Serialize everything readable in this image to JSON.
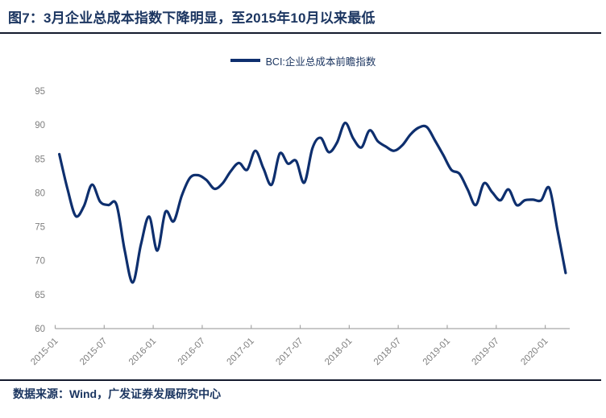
{
  "header": {
    "title": "图7：3月企业总成本指数下降明显，至2015年10月以来最低"
  },
  "legend": {
    "label": "BCI:企业总成本前瞻指数"
  },
  "footer": {
    "source": "数据来源：Wind，广发证券发展研究中心"
  },
  "colors": {
    "line": "#0e2f6e",
    "title_text": "#1c3661",
    "axis_text": "#7f7f7f",
    "axis_line": "#a6a6a6",
    "rule": "#141b2e"
  },
  "chart_data": {
    "type": "line",
    "title": "图7：3月企业总成本指数下降明显，至2015年10月以来最低",
    "legend_entries": [
      "BCI:企业总成本前瞻指数"
    ],
    "legend_position": "top",
    "grid": false,
    "smooth": true,
    "xlabel": "",
    "ylabel": "",
    "ylim": [
      60,
      95
    ],
    "yticks": [
      60,
      65,
      70,
      75,
      80,
      85,
      90,
      95
    ],
    "xtick_labels": [
      "2015-01",
      "2015-07",
      "2016-01",
      "2016-07",
      "2017-01",
      "2017-07",
      "2018-01",
      "2018-07",
      "2019-01",
      "2019-07",
      "2020-01"
    ],
    "categories": [
      "2015-01",
      "2015-02",
      "2015-03",
      "2015-04",
      "2015-05",
      "2015-06",
      "2015-07",
      "2015-08",
      "2015-09",
      "2015-10",
      "2015-11",
      "2015-12",
      "2016-01",
      "2016-02",
      "2016-03",
      "2016-04",
      "2016-05",
      "2016-06",
      "2016-07",
      "2016-08",
      "2016-09",
      "2016-10",
      "2016-11",
      "2016-12",
      "2017-01",
      "2017-02",
      "2017-03",
      "2017-04",
      "2017-05",
      "2017-06",
      "2017-07",
      "2017-08",
      "2017-09",
      "2017-10",
      "2017-11",
      "2017-12",
      "2018-01",
      "2018-02",
      "2018-03",
      "2018-04",
      "2018-05",
      "2018-06",
      "2018-07",
      "2018-08",
      "2018-09",
      "2018-10",
      "2018-11",
      "2018-12",
      "2019-01",
      "2019-02",
      "2019-03",
      "2019-04",
      "2019-05",
      "2019-06",
      "2019-07",
      "2019-08",
      "2019-09",
      "2019-10",
      "2019-11",
      "2019-12",
      "2020-01",
      "2020-02",
      "2020-03"
    ],
    "series": [
      {
        "name": "BCI:企业总成本前瞻指数",
        "values": [
          85.7,
          80.6,
          76.6,
          78.0,
          81.2,
          78.7,
          78.2,
          78.3,
          71.6,
          66.8,
          72.4,
          76.5,
          71.5,
          77.2,
          75.8,
          79.6,
          82.2,
          82.6,
          81.9,
          80.6,
          81.4,
          83.2,
          84.4,
          83.4,
          86.2,
          83.6,
          81.2,
          85.8,
          84.3,
          84.7,
          81.5,
          86.6,
          88.1,
          86.0,
          87.4,
          90.3,
          88.0,
          86.7,
          89.2,
          87.6,
          86.8,
          86.2,
          87.0,
          88.6,
          89.6,
          89.7,
          87.7,
          85.6,
          83.4,
          82.8,
          80.5,
          78.2,
          81.4,
          80.1,
          78.9,
          80.5,
          78.2,
          78.9,
          79.0,
          78.9,
          80.7,
          74.5,
          68.2
        ]
      }
    ]
  }
}
